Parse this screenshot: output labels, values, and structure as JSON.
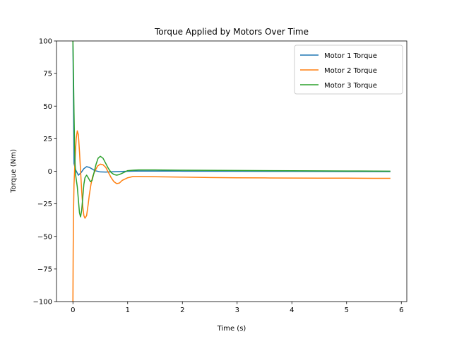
{
  "chart_data": {
    "type": "line",
    "title": "Torque Applied by Motors Over Time",
    "xlabel": "Time (s)",
    "ylabel": "Torque (Nm)",
    "xlim": [
      -0.3,
      6.1
    ],
    "ylim": [
      -100,
      100
    ],
    "xticks": [
      0,
      1,
      2,
      3,
      4,
      5,
      6
    ],
    "yticks": [
      -100,
      -75,
      -50,
      -25,
      0,
      25,
      50,
      75,
      100
    ],
    "legend_position": "top-right",
    "grid": false,
    "series": [
      {
        "name": "Motor 1 Torque",
        "color": "#1f77b4",
        "x": [
          0.0,
          0.02,
          0.05,
          0.1,
          0.15,
          0.2,
          0.25,
          0.3,
          0.35,
          0.4,
          0.5,
          0.6,
          0.8,
          1.0,
          1.2,
          2,
          3,
          4,
          5,
          5.8
        ],
        "y": [
          100,
          6,
          1,
          -3,
          -1,
          2,
          3.5,
          3,
          1.8,
          0.5,
          -0.5,
          -0.6,
          -0.3,
          0,
          0.2,
          0.1,
          0.0,
          -0.1,
          -0.2,
          -0.3
        ]
      },
      {
        "name": "Motor 2 Torque",
        "color": "#ff7f0e",
        "x": [
          0.0,
          0.005,
          0.01,
          0.02,
          0.04,
          0.06,
          0.08,
          0.1,
          0.12,
          0.14,
          0.16,
          0.18,
          0.2,
          0.22,
          0.25,
          0.28,
          0.3,
          0.33,
          0.36,
          0.4,
          0.45,
          0.5,
          0.55,
          0.6,
          0.65,
          0.7,
          0.75,
          0.8,
          0.85,
          0.9,
          1.0,
          1.1,
          1.2,
          1.5,
          2,
          2.5,
          3,
          3.5,
          4,
          4.5,
          5,
          5.5,
          5.8
        ],
        "y": [
          -100,
          -60,
          -35,
          -10,
          10,
          25,
          31,
          28,
          15,
          0,
          -15,
          -27,
          -34,
          -36,
          -34,
          -25,
          -18,
          -10,
          -4,
          0,
          4,
          5.5,
          5,
          3,
          -1,
          -5,
          -8,
          -9.5,
          -9,
          -7,
          -5,
          -4,
          -4,
          -4.2,
          -4.5,
          -4.8,
          -5,
          -5.1,
          -5.2,
          -5.3,
          -5.3,
          -5.4,
          -5.4
        ]
      },
      {
        "name": "Motor 3 Torque",
        "color": "#2ca02c",
        "x": [
          0.0,
          0.01,
          0.02,
          0.03,
          0.04,
          0.05,
          0.06,
          0.08,
          0.1,
          0.12,
          0.14,
          0.16,
          0.18,
          0.2,
          0.22,
          0.25,
          0.28,
          0.32,
          0.35,
          0.38,
          0.42,
          0.46,
          0.5,
          0.55,
          0.6,
          0.65,
          0.7,
          0.75,
          0.8,
          0.85,
          0.9,
          0.95,
          1.0,
          1.1,
          1.2,
          1.5,
          2,
          3,
          4,
          5,
          5.8
        ],
        "y": [
          100,
          75,
          45,
          20,
          5,
          -3,
          -6,
          -12,
          -22,
          -32,
          -35,
          -30,
          -20,
          -10,
          -5,
          -3,
          -5,
          -8,
          -7,
          -2,
          5,
          10,
          11.5,
          10,
          6,
          2,
          -1,
          -2.5,
          -3,
          -2.5,
          -1.5,
          -0.5,
          0.5,
          0.8,
          1.0,
          1.0,
          0.8,
          0.6,
          0.4,
          0.2,
          0.1
        ]
      }
    ]
  }
}
